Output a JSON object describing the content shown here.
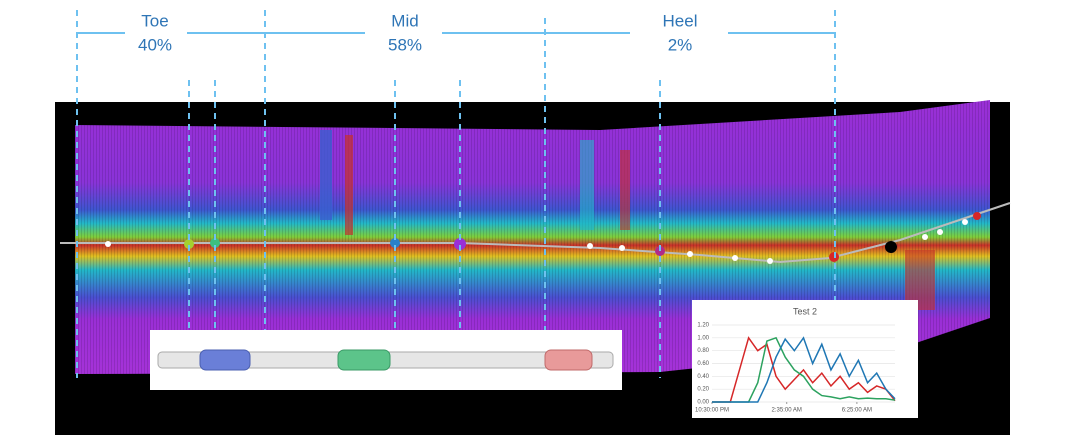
{
  "zones": [
    {
      "name": "Toe",
      "share": "40%"
    },
    {
      "name": "Mid",
      "share": "58%"
    },
    {
      "name": "Heel",
      "share": "2%"
    }
  ],
  "chart_data": {
    "type": "line",
    "title": "Test 2",
    "x": [
      0,
      0.5,
      1,
      1.5,
      2,
      2.5,
      3,
      3.5,
      4,
      4.5,
      5,
      5.5,
      6,
      6.5,
      7,
      7.5,
      8,
      8.5,
      9,
      9.5,
      10
    ],
    "series": [
      {
        "color": "#d62728",
        "values": [
          0,
          0,
          0,
          0.5,
          1.0,
          0.8,
          0.9,
          0.4,
          0.2,
          0.35,
          0.5,
          0.3,
          0.45,
          0.25,
          0.4,
          0.2,
          0.3,
          0.15,
          0.25,
          0.2,
          0.02
        ]
      },
      {
        "color": "#2ca25f",
        "values": [
          0,
          0,
          0,
          0,
          0,
          0.3,
          0.95,
          1.0,
          0.7,
          0.5,
          0.4,
          0.2,
          0.1,
          0.08,
          0.05,
          0.08,
          0.05,
          0.06,
          0.05,
          0.05,
          0.03
        ]
      },
      {
        "color": "#1f77b4",
        "values": [
          0,
          0,
          0,
          0,
          0,
          0,
          0.3,
          0.7,
          0.98,
          0.8,
          1.0,
          0.6,
          0.9,
          0.5,
          0.75,
          0.4,
          0.65,
          0.3,
          0.45,
          0.2,
          0.05
        ]
      }
    ],
    "xlim": [
      0,
      10
    ],
    "xticks": [
      {
        "value": 0,
        "label": "10:30:00 PM"
      },
      {
        "value": 4.083,
        "label": "2:35:00 AM"
      },
      {
        "value": 7.917,
        "label": "6:25:00 AM"
      }
    ],
    "ylim": [
      0,
      1.2
    ],
    "yticks": [
      {
        "value": 0,
        "label": "0.00"
      },
      {
        "value": 0.2,
        "label": "0.20"
      },
      {
        "value": 0.4,
        "label": "0.40"
      },
      {
        "value": 0.6,
        "label": "0.60"
      },
      {
        "value": 0.8,
        "label": "0.80"
      },
      {
        "value": 1.0,
        "label": "1.00"
      },
      {
        "value": 1.2,
        "label": "1.20"
      }
    ],
    "grid": true
  }
}
